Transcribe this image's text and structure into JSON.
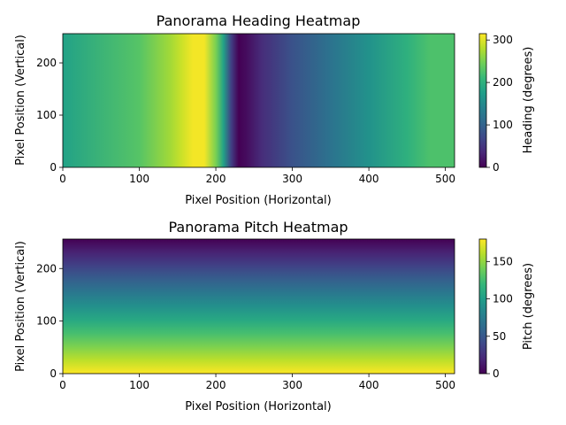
{
  "chart_data": [
    {
      "type": "heatmap",
      "title": "Panorama Heading Heatmap",
      "xlabel": "Pixel Position (Horizontal)",
      "ylabel": "Pixel Position (Vertical)",
      "xlim": [
        0,
        512
      ],
      "ylim": [
        0,
        256
      ],
      "xticks": [
        0,
        100,
        200,
        300,
        400,
        500
      ],
      "yticks": [
        0,
        100,
        200
      ],
      "colormap": "viridis",
      "gradient_axis": "x",
      "profile_x": [
        0,
        100,
        140,
        155,
        170,
        185,
        200,
        210,
        220,
        230,
        240,
        260,
        300,
        350,
        400,
        450,
        480,
        512
      ],
      "profile_value": [
        180,
        230,
        270,
        290,
        310,
        310,
        250,
        180,
        60,
        0,
        10,
        40,
        80,
        120,
        160,
        200,
        225,
        225
      ],
      "colorbar": {
        "label": "Heading (degrees)",
        "range": [
          0,
          315
        ],
        "ticks": [
          0,
          100,
          200,
          300
        ]
      }
    },
    {
      "type": "heatmap",
      "title": "Panorama Pitch Heatmap",
      "xlabel": "Pixel Position (Horizontal)",
      "ylabel": "Pixel Position (Vertical)",
      "xlim": [
        0,
        512
      ],
      "ylim": [
        0,
        256
      ],
      "xticks": [
        0,
        100,
        200,
        300,
        400,
        500
      ],
      "yticks": [
        0,
        100,
        200
      ],
      "colormap": "viridis",
      "gradient_axis": "y",
      "profile_y": [
        0,
        256
      ],
      "profile_value": [
        180,
        0
      ],
      "colorbar": {
        "label": "Pitch (degrees)",
        "range": [
          0,
          180
        ],
        "ticks": [
          0,
          50,
          100,
          150
        ]
      }
    }
  ]
}
